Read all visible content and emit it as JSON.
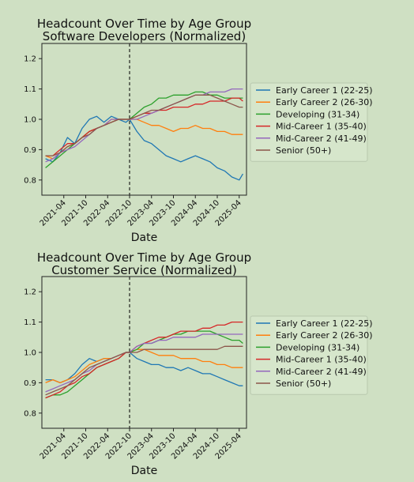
{
  "colors": {
    "background": "#cfe0c3",
    "plot_background": "#cfe0c3",
    "axes": "#222222",
    "legend_background": "#d6e6cb",
    "legend_border": "#b8c8ae"
  },
  "chart_data": [
    {
      "type": "line",
      "title": "Headcount Over Time by Age Group",
      "subtitle": "Software Developers (Normalized)",
      "xlabel": "Date",
      "ylabel": "",
      "ylim": [
        0.75,
        1.25
      ],
      "xlim": [
        "2020-10",
        "2025-06"
      ],
      "yticks": [
        0.8,
        0.9,
        1.0,
        1.1,
        1.2
      ],
      "ytick_labels": [
        "0.8",
        "0.9",
        "1.0",
        "1.1",
        "1.2"
      ],
      "xticks": [
        "2021-04",
        "2021-10",
        "2022-04",
        "2022-10",
        "2023-04",
        "2023-10",
        "2024-04",
        "2024-10",
        "2025-04"
      ],
      "reference_line": "2022-10",
      "grid": false,
      "legend_position": "right",
      "x": [
        "2020-11",
        "2021-01",
        "2021-03",
        "2021-05",
        "2021-07",
        "2021-09",
        "2021-11",
        "2022-01",
        "2022-03",
        "2022-05",
        "2022-07",
        "2022-09",
        "2022-10",
        "2022-12",
        "2023-02",
        "2023-04",
        "2023-06",
        "2023-08",
        "2023-10",
        "2023-12",
        "2024-02",
        "2024-04",
        "2024-06",
        "2024-08",
        "2024-10",
        "2024-12",
        "2025-02",
        "2025-04",
        "2025-05"
      ],
      "series": [
        {
          "name": "Early Career 1 (22-25)",
          "color": "#1f77b4",
          "values": [
            0.87,
            0.86,
            0.89,
            0.94,
            0.92,
            0.97,
            1.0,
            1.01,
            0.99,
            1.01,
            1.0,
            0.99,
            1.0,
            0.96,
            0.93,
            0.92,
            0.9,
            0.88,
            0.87,
            0.86,
            0.87,
            0.88,
            0.87,
            0.86,
            0.84,
            0.83,
            0.81,
            0.8,
            0.82
          ]
        },
        {
          "name": "Early Career 2 (26-30)",
          "color": "#ff7f0e",
          "values": [
            0.88,
            0.87,
            0.89,
            0.91,
            0.92,
            0.94,
            0.96,
            0.97,
            0.98,
            1.0,
            1.0,
            1.0,
            1.0,
            1.0,
            0.99,
            0.98,
            0.98,
            0.97,
            0.96,
            0.97,
            0.97,
            0.98,
            0.97,
            0.97,
            0.96,
            0.96,
            0.95,
            0.95,
            0.95
          ]
        },
        {
          "name": "Developing (31-34)",
          "color": "#2ca02c",
          "values": [
            0.84,
            0.86,
            0.88,
            0.9,
            0.92,
            0.94,
            0.96,
            0.97,
            0.98,
            0.99,
            1.0,
            1.0,
            1.0,
            1.02,
            1.04,
            1.05,
            1.07,
            1.07,
            1.08,
            1.08,
            1.08,
            1.09,
            1.09,
            1.08,
            1.08,
            1.07,
            1.07,
            1.07,
            1.07
          ]
        },
        {
          "name": "Mid-Career 1 (35-40)",
          "color": "#d62728",
          "values": [
            0.88,
            0.88,
            0.9,
            0.92,
            0.92,
            0.94,
            0.96,
            0.97,
            0.98,
            0.99,
            1.0,
            1.0,
            1.0,
            1.01,
            1.02,
            1.02,
            1.03,
            1.03,
            1.04,
            1.04,
            1.04,
            1.05,
            1.05,
            1.06,
            1.06,
            1.06,
            1.07,
            1.07,
            1.06
          ]
        },
        {
          "name": "Mid-Career 2 (41-49)",
          "color": "#9467bd",
          "values": [
            0.86,
            0.87,
            0.89,
            0.9,
            0.91,
            0.93,
            0.95,
            0.97,
            0.98,
            1.0,
            1.0,
            1.0,
            1.0,
            1.0,
            1.01,
            1.02,
            1.03,
            1.04,
            1.05,
            1.06,
            1.07,
            1.08,
            1.08,
            1.09,
            1.09,
            1.09,
            1.1,
            1.1,
            1.1
          ]
        },
        {
          "name": "Senior (50+)",
          "color": "#8c564b",
          "values": [
            0.88,
            0.88,
            0.89,
            0.91,
            0.92,
            0.94,
            0.95,
            0.97,
            0.98,
            0.99,
            1.0,
            1.0,
            1.0,
            1.01,
            1.02,
            1.03,
            1.03,
            1.04,
            1.05,
            1.06,
            1.07,
            1.08,
            1.08,
            1.08,
            1.07,
            1.06,
            1.05,
            1.04,
            1.04
          ]
        }
      ]
    },
    {
      "type": "line",
      "title": "Headcount Over Time by Age Group",
      "subtitle": "Customer Service (Normalized)",
      "xlabel": "Date",
      "ylabel": "",
      "ylim": [
        0.75,
        1.25
      ],
      "xlim": [
        "2020-10",
        "2025-06"
      ],
      "yticks": [
        0.8,
        0.9,
        1.0,
        1.1,
        1.2
      ],
      "ytick_labels": [
        "0.8",
        "0.9",
        "1.0",
        "1.1",
        "1.2"
      ],
      "xticks": [
        "2021-04",
        "2021-10",
        "2022-04",
        "2022-10",
        "2023-04",
        "2023-10",
        "2024-04",
        "2024-10",
        "2025-04"
      ],
      "reference_line": "2022-10",
      "grid": false,
      "legend_position": "right",
      "x": [
        "2020-11",
        "2021-01",
        "2021-03",
        "2021-05",
        "2021-07",
        "2021-09",
        "2021-11",
        "2022-01",
        "2022-03",
        "2022-05",
        "2022-07",
        "2022-09",
        "2022-10",
        "2022-12",
        "2023-02",
        "2023-04",
        "2023-06",
        "2023-08",
        "2023-10",
        "2023-12",
        "2024-02",
        "2024-04",
        "2024-06",
        "2024-08",
        "2024-10",
        "2024-12",
        "2025-02",
        "2025-04",
        "2025-05"
      ],
      "series": [
        {
          "name": "Early Career 1 (22-25)",
          "color": "#1f77b4",
          "values": [
            0.91,
            0.91,
            0.9,
            0.91,
            0.93,
            0.96,
            0.98,
            0.97,
            0.98,
            0.98,
            0.99,
            1.0,
            1.0,
            0.98,
            0.97,
            0.96,
            0.96,
            0.95,
            0.95,
            0.94,
            0.95,
            0.94,
            0.93,
            0.93,
            0.92,
            0.91,
            0.9,
            0.89,
            0.89
          ]
        },
        {
          "name": "Early Career 2 (26-30)",
          "color": "#ff7f0e",
          "values": [
            0.9,
            0.91,
            0.9,
            0.91,
            0.92,
            0.94,
            0.96,
            0.97,
            0.98,
            0.98,
            0.99,
            1.0,
            1.0,
            1.01,
            1.01,
            1.0,
            0.99,
            0.99,
            0.99,
            0.98,
            0.98,
            0.98,
            0.97,
            0.97,
            0.96,
            0.96,
            0.95,
            0.95,
            0.95
          ]
        },
        {
          "name": "Developing (31-34)",
          "color": "#2ca02c",
          "values": [
            0.85,
            0.86,
            0.86,
            0.87,
            0.89,
            0.91,
            0.93,
            0.95,
            0.96,
            0.97,
            0.98,
            1.0,
            1.0,
            1.01,
            1.03,
            1.03,
            1.04,
            1.05,
            1.06,
            1.06,
            1.07,
            1.07,
            1.07,
            1.07,
            1.06,
            1.05,
            1.04,
            1.04,
            1.03
          ]
        },
        {
          "name": "Mid-Career 1 (35-40)",
          "color": "#d62728",
          "values": [
            0.85,
            0.86,
            0.87,
            0.89,
            0.9,
            0.92,
            0.93,
            0.95,
            0.96,
            0.97,
            0.98,
            1.0,
            1.0,
            1.02,
            1.03,
            1.04,
            1.05,
            1.05,
            1.06,
            1.07,
            1.07,
            1.07,
            1.08,
            1.08,
            1.09,
            1.09,
            1.1,
            1.1,
            1.1
          ]
        },
        {
          "name": "Mid-Career 2 (41-49)",
          "color": "#9467bd",
          "values": [
            0.87,
            0.88,
            0.89,
            0.9,
            0.91,
            0.93,
            0.94,
            0.96,
            0.97,
            0.98,
            0.99,
            1.0,
            1.0,
            1.02,
            1.03,
            1.03,
            1.04,
            1.04,
            1.05,
            1.05,
            1.05,
            1.05,
            1.06,
            1.06,
            1.06,
            1.06,
            1.06,
            1.06,
            1.06
          ]
        },
        {
          "name": "Senior (50+)",
          "color": "#8c564b",
          "values": [
            0.86,
            0.87,
            0.88,
            0.89,
            0.91,
            0.93,
            0.95,
            0.96,
            0.97,
            0.98,
            0.99,
            1.0,
            1.0,
            1.0,
            1.01,
            1.01,
            1.01,
            1.01,
            1.01,
            1.01,
            1.01,
            1.01,
            1.01,
            1.01,
            1.01,
            1.02,
            1.02,
            1.02,
            1.02
          ]
        }
      ]
    }
  ]
}
